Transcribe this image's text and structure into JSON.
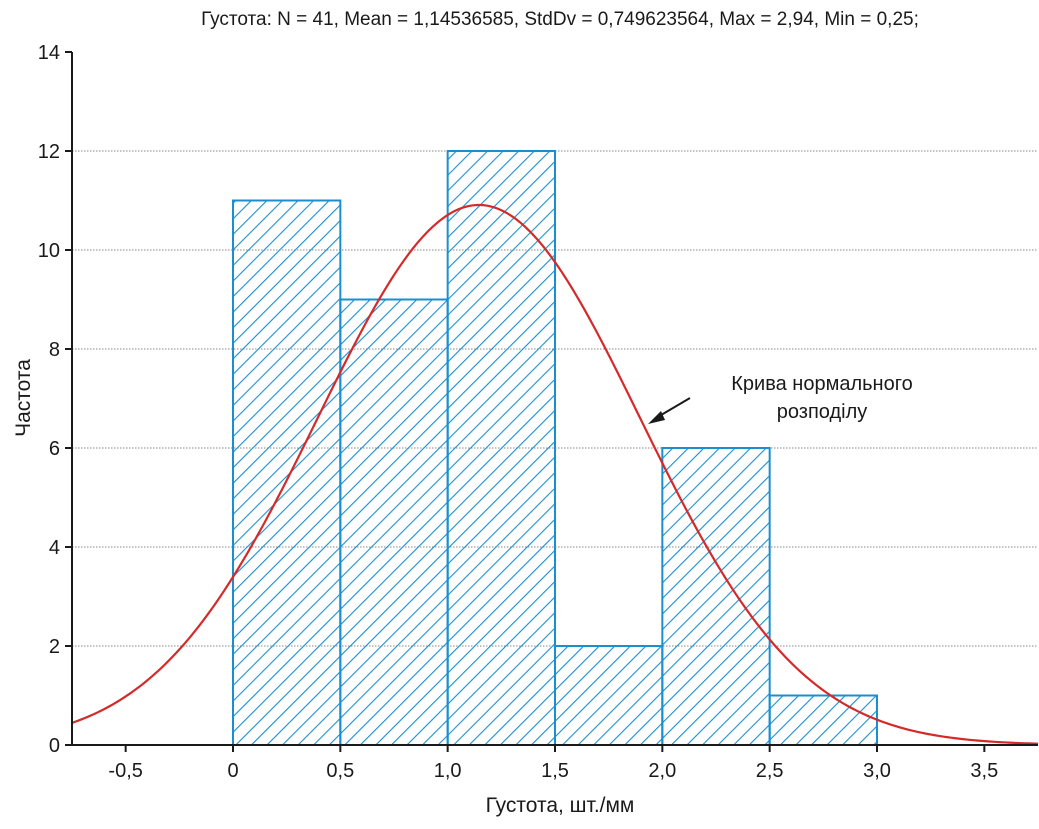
{
  "chart_data": {
    "type": "bar",
    "title": "Густота:   N = 41, Mean = 1,14536585, StdDv = 0,749623564, Max = 2,94, Min = 0,25;",
    "xlabel": "Густота, шт./мм",
    "ylabel": "Частота",
    "xlim": [
      -0.75,
      3.75
    ],
    "ylim": [
      0,
      14
    ],
    "x_ticks": [
      {
        "value": -0.5,
        "label": "-0,5"
      },
      {
        "value": 0,
        "label": "0"
      },
      {
        "value": 0.5,
        "label": "0,5"
      },
      {
        "value": 1.0,
        "label": "1,0"
      },
      {
        "value": 1.5,
        "label": "1,5"
      },
      {
        "value": 2.0,
        "label": "2,0"
      },
      {
        "value": 2.5,
        "label": "2,5"
      },
      {
        "value": 3.0,
        "label": "3,0"
      },
      {
        "value": 3.5,
        "label": "3,5"
      }
    ],
    "y_ticks": [
      {
        "value": 0,
        "label": "0"
      },
      {
        "value": 2,
        "label": "2"
      },
      {
        "value": 4,
        "label": "4"
      },
      {
        "value": 6,
        "label": "6"
      },
      {
        "value": 8,
        "label": "8"
      },
      {
        "value": 10,
        "label": "10"
      },
      {
        "value": 12,
        "label": "12"
      },
      {
        "value": 14,
        "label": "14"
      }
    ],
    "bins": [
      {
        "from": 0.0,
        "to": 0.5,
        "count": 11
      },
      {
        "from": 0.5,
        "to": 1.0,
        "count": 9
      },
      {
        "from": 1.0,
        "to": 1.5,
        "count": 12
      },
      {
        "from": 1.5,
        "to": 2.0,
        "count": 2
      },
      {
        "from": 2.0,
        "to": 2.5,
        "count": 6
      },
      {
        "from": 2.5,
        "to": 3.0,
        "count": 1
      }
    ],
    "normal_curve": {
      "n": 41,
      "mean": 1.14536585,
      "std": 0.749623564,
      "bin_width": 0.5
    },
    "annotation": {
      "lines": [
        "Крива нормального",
        "розподілу"
      ],
      "points_to_x": 1.93
    },
    "grid": "horizontal dotted",
    "colors": {
      "bars": "#1a8fcf",
      "curve": "#d42a2a",
      "axis": "#1a1a1a",
      "grid": "#888888"
    }
  }
}
